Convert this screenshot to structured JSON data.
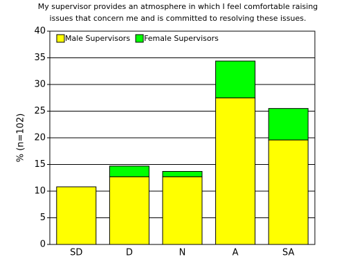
{
  "chart_data": {
    "type": "stacked_bar",
    "title": [
      "My supervisor provides an atmosphere in which I feel comfortable raising",
      "issues that concern me and is committed to resolving these issues."
    ],
    "y_label": "% (n=102)",
    "categories": [
      "SD",
      "D",
      "N",
      "A",
      "SA"
    ],
    "series": [
      {
        "name": "Male Supervisors",
        "color": "#ffff00",
        "values": [
          10.8,
          12.7,
          12.7,
          27.5,
          19.6
        ]
      },
      {
        "name": "Female Supervisors",
        "color": "#00ff00",
        "values": [
          0,
          2.0,
          1.0,
          6.9,
          5.9
        ]
      }
    ],
    "ylim": [
      0,
      40
    ],
    "yticks": [
      0,
      5,
      10,
      15,
      20,
      25,
      30,
      35,
      40
    ],
    "grid": true,
    "legend": "top-left"
  }
}
